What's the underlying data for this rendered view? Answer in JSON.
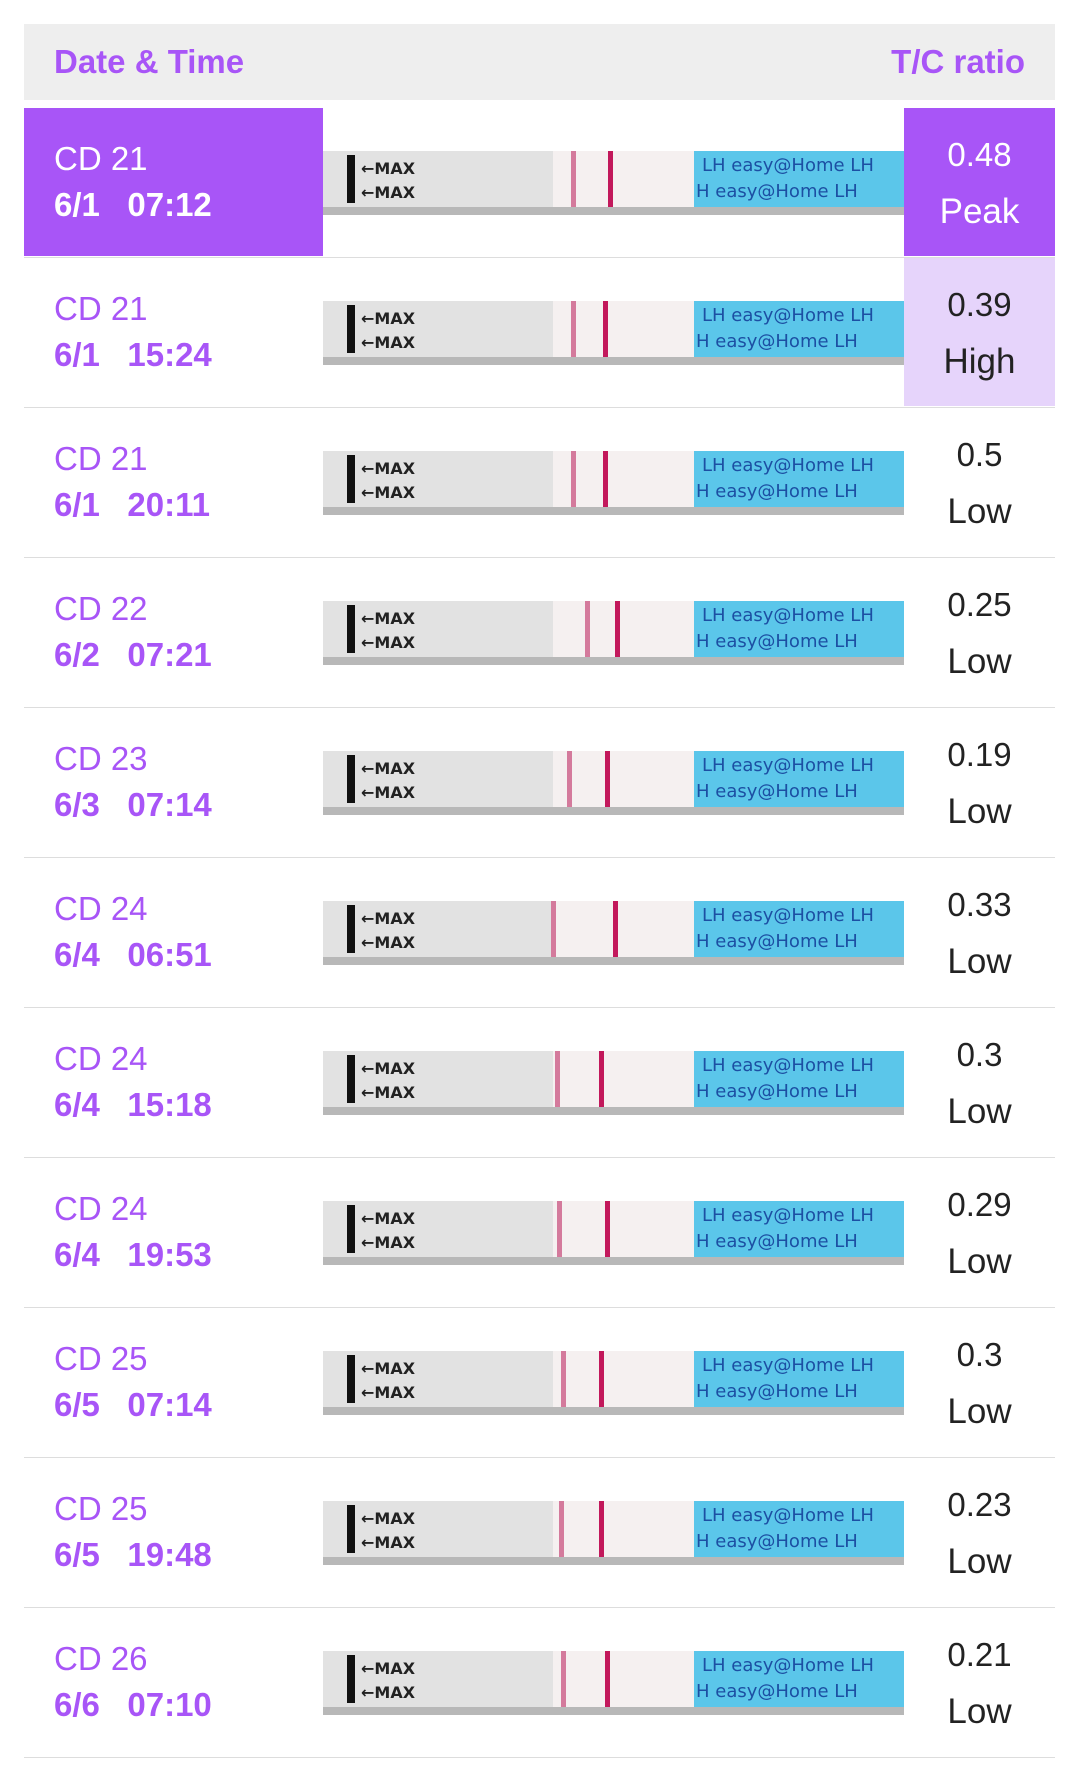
{
  "header": {
    "left_label": "Date & Time",
    "right_label": "T/C ratio"
  },
  "strip": {
    "max_label": "←MAX",
    "brand_line1": "LH  easy@Home  LH",
    "brand_line2": "H  easy@Home  LH"
  },
  "rows": [
    {
      "cd": "CD 21",
      "datetime": "6/1   07:12",
      "ratio": "0.48",
      "level": "Peak",
      "state": "peak"
    },
    {
      "cd": "CD 21",
      "datetime": "6/1   15:24",
      "ratio": "0.39",
      "level": "High",
      "state": "high"
    },
    {
      "cd": "CD 21",
      "datetime": "6/1   20:11",
      "ratio": "0.5",
      "level": "Low",
      "state": "low"
    },
    {
      "cd": "CD 22",
      "datetime": "6/2   07:21",
      "ratio": "0.25",
      "level": "Low",
      "state": "low"
    },
    {
      "cd": "CD 23",
      "datetime": "6/3   07:14",
      "ratio": "0.19",
      "level": "Low",
      "state": "low"
    },
    {
      "cd": "CD 24",
      "datetime": "6/4   06:51",
      "ratio": "0.33",
      "level": "Low",
      "state": "low"
    },
    {
      "cd": "CD 24",
      "datetime": "6/4   15:18",
      "ratio": "0.3",
      "level": "Low",
      "state": "low"
    },
    {
      "cd": "CD 24",
      "datetime": "6/4   19:53",
      "ratio": "0.29",
      "level": "Low",
      "state": "low"
    },
    {
      "cd": "CD 25",
      "datetime": "6/5   07:14",
      "ratio": "0.3",
      "level": "Low",
      "state": "low"
    },
    {
      "cd": "CD 25",
      "datetime": "6/5   19:48",
      "ratio": "0.23",
      "level": "Low",
      "state": "low"
    },
    {
      "cd": "CD 26",
      "datetime": "6/6   07:10",
      "ratio": "0.21",
      "level": "Low",
      "state": "low"
    }
  ],
  "colors": {
    "accent": "#a855f7",
    "high_bg": "#e6d4fb",
    "strip_blue": "#5bc6ea"
  }
}
